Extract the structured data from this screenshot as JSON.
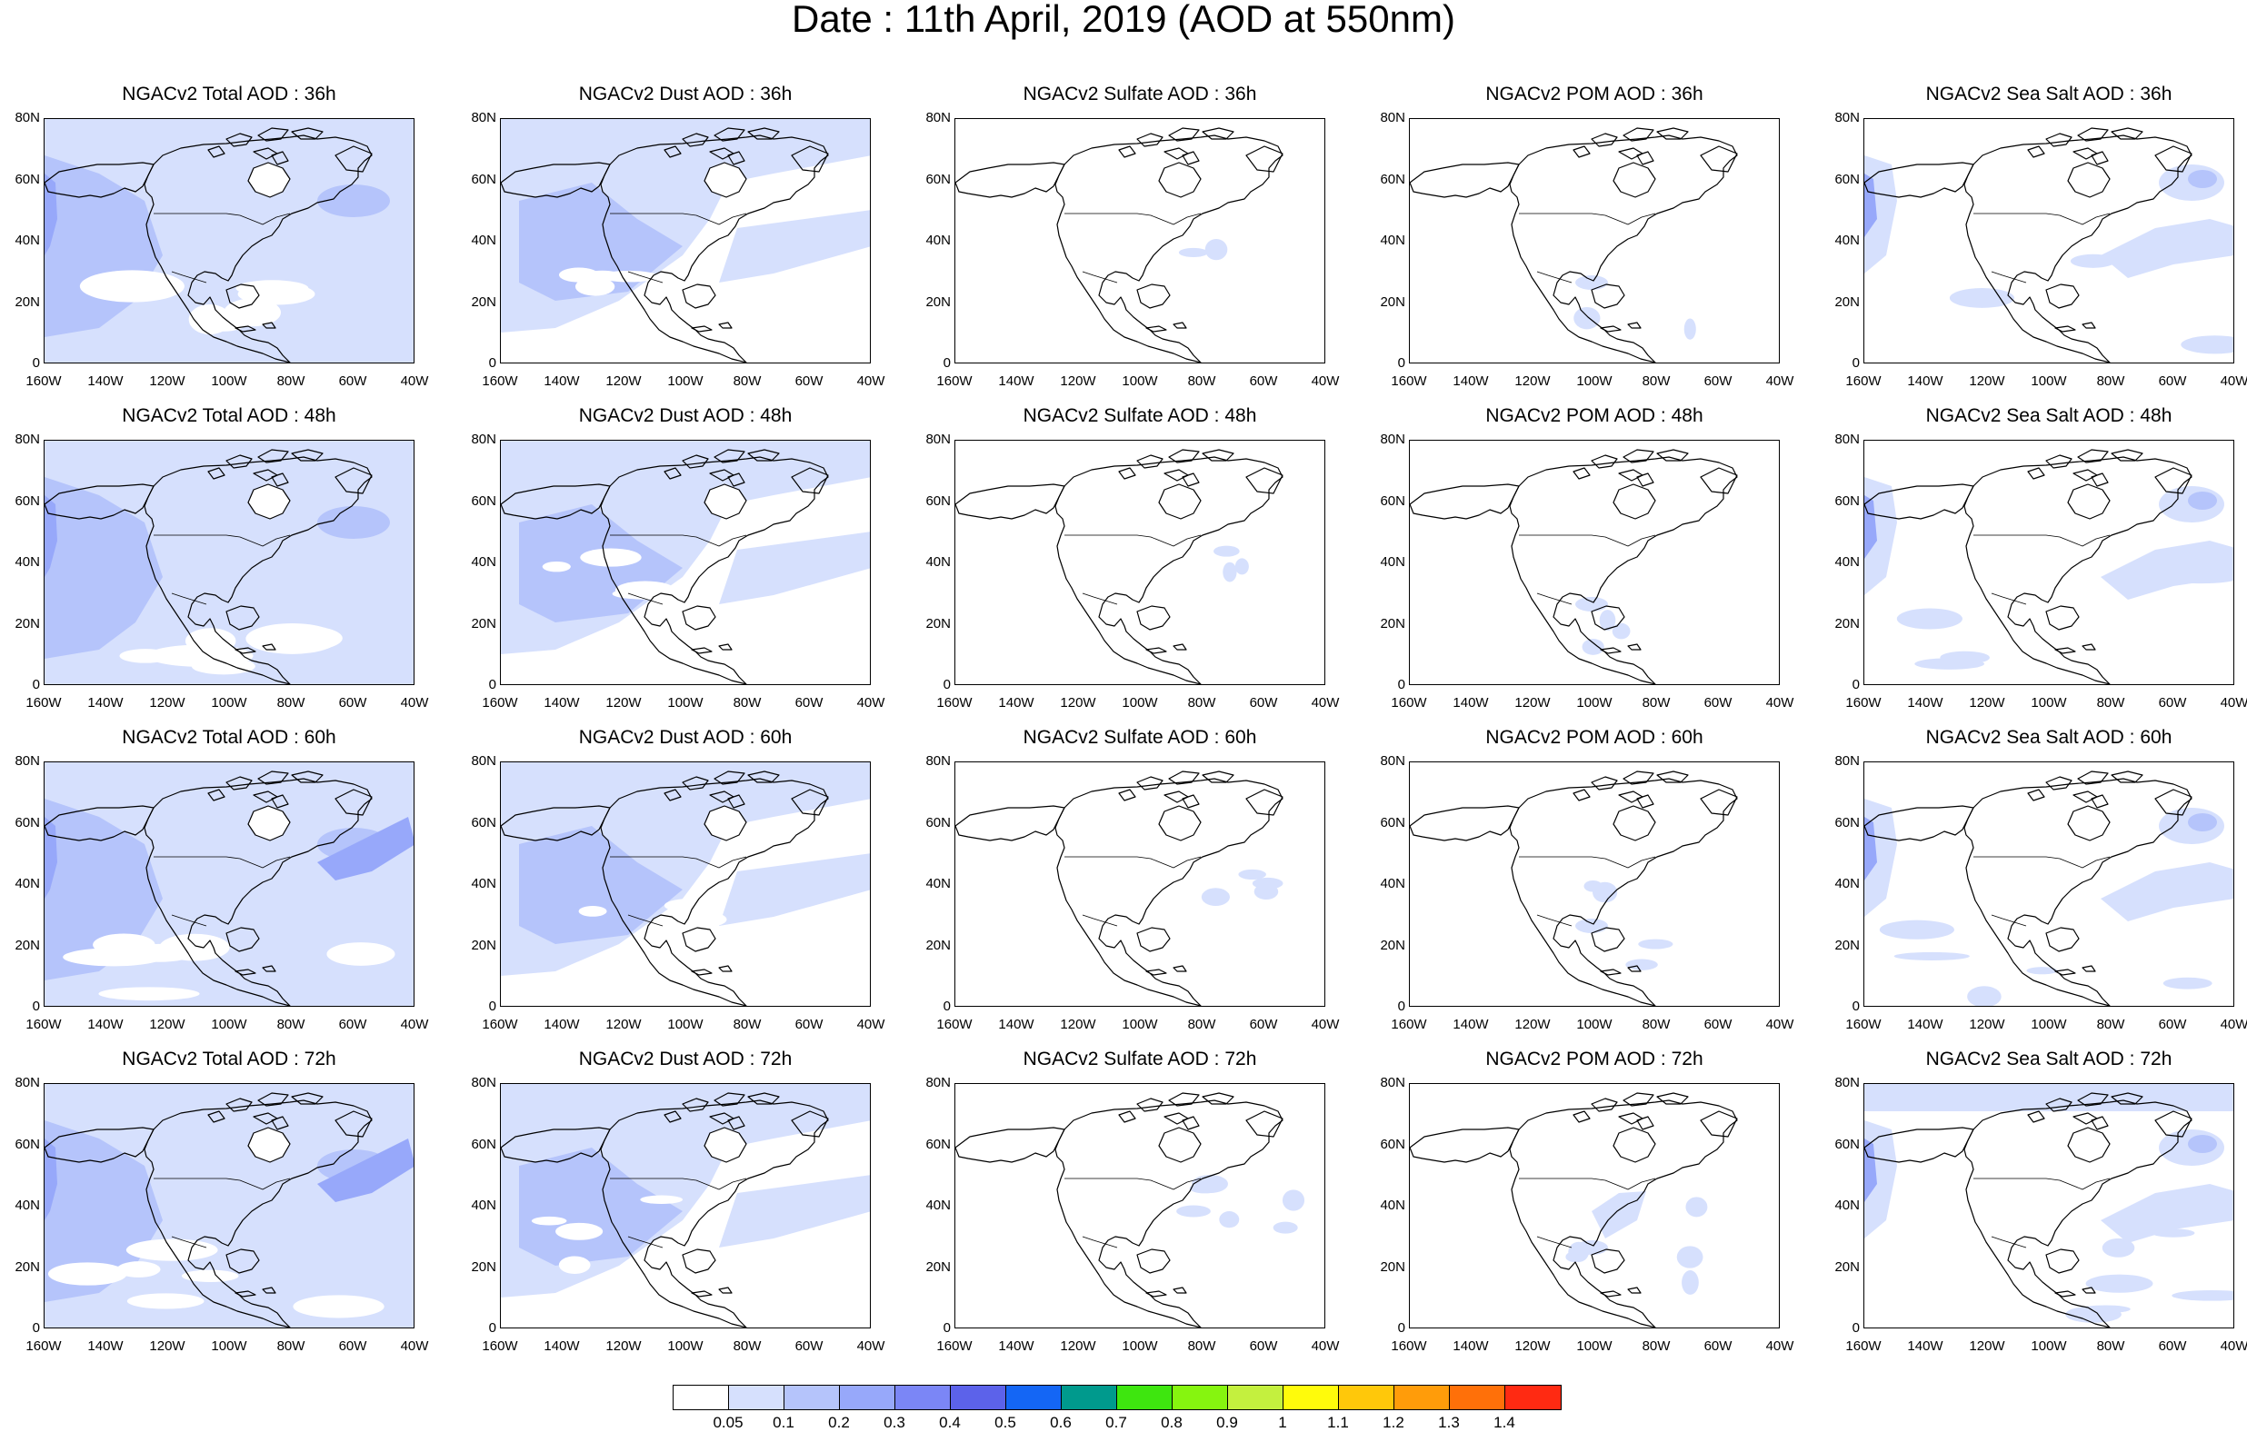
{
  "title": "Date : 11th April, 2019 (AOD at 550nm)",
  "panel_titles": [
    [
      "NGACv2 Total AOD : 36h",
      "NGACv2 Dust AOD : 36h",
      "NGACv2 Sulfate AOD : 36h",
      "NGACv2 POM AOD : 36h",
      "NGACv2 Sea Salt AOD : 36h"
    ],
    [
      "NGACv2 Total AOD : 48h",
      "NGACv2 Dust AOD : 48h",
      "NGACv2 Sulfate AOD : 48h",
      "NGACv2 POM AOD : 48h",
      "NGACv2 Sea Salt AOD : 48h"
    ],
    [
      "NGACv2 Total AOD : 60h",
      "NGACv2 Dust AOD : 60h",
      "NGACv2 Sulfate AOD : 60h",
      "NGACv2 POM AOD : 60h",
      "NGACv2 Sea Salt AOD : 60h"
    ],
    [
      "NGACv2 Total AOD : 72h",
      "NGACv2 Dust AOD : 72h",
      "NGACv2 Sulfate AOD : 72h",
      "NGACv2 POM AOD : 72h",
      "NGACv2 Sea Salt  AOD : 72h"
    ]
  ],
  "lat_ticks": [
    "80N",
    "60N",
    "40N",
    "20N",
    "0"
  ],
  "lon_ticks": [
    "160W",
    "140W",
    "120W",
    "100W",
    "80W",
    "60W",
    "40W"
  ],
  "colorbar": {
    "labels": [
      "0.05",
      "0.1",
      "0.2",
      "0.3",
      "0.4",
      "0.5",
      "0.6",
      "0.7",
      "0.8",
      "0.9",
      "1",
      "1.1",
      "1.2",
      "1.3",
      "1.4"
    ],
    "colors": [
      "#ffffff",
      "#d6e0fd",
      "#b5c4fb",
      "#97a8fa",
      "#7b86f6",
      "#5c62ea",
      "#1466f5",
      "#009a8d",
      "#3ee60f",
      "#86f50f",
      "#c4f03e",
      "#fffb0b",
      "#ffc80a",
      "#ff9c0a",
      "#ff7009",
      "#ff2a12"
    ]
  },
  "map_style": {
    "fill_light": "#d6e0fd",
    "fill_medium": "#b5c4fb",
    "fill_dark": "#97a8fa",
    "coastline": "#000000"
  }
}
